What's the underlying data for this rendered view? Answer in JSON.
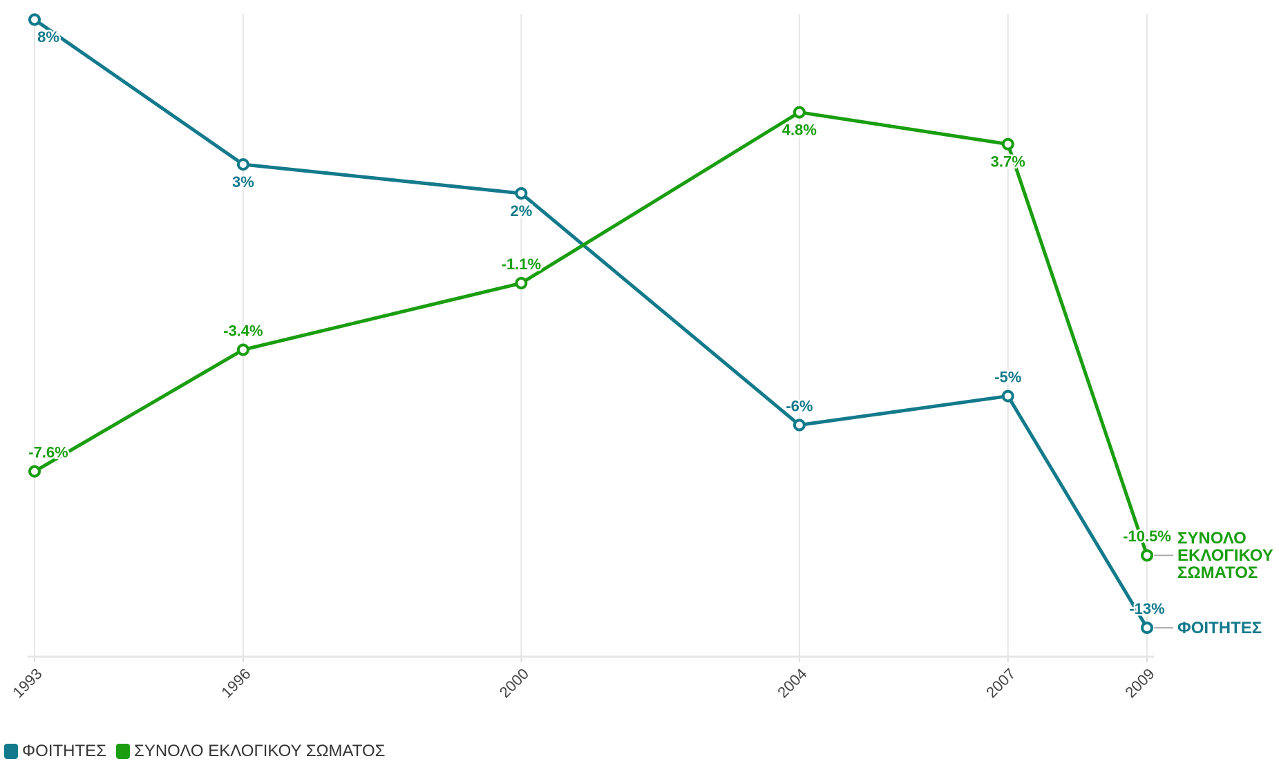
{
  "chart_data": {
    "type": "line",
    "x": [
      1993,
      1996,
      2000,
      2004,
      2007,
      2009
    ],
    "xlim": [
      1993,
      2009
    ],
    "xticks": [
      1993,
      1996,
      2000,
      2004,
      2007,
      2009
    ],
    "ylim": [
      -14,
      8.2
    ],
    "grid": true,
    "series": [
      {
        "name": "ΦΟΙΤΗΤΕΣ",
        "color": "#137a8c",
        "values": [
          8,
          3,
          2,
          -6,
          -5,
          -13
        ],
        "value_labels": [
          "8%",
          "3%",
          "2%",
          "-6%",
          "-5%",
          "-13%"
        ]
      },
      {
        "name": "ΣΥΝΟΛΟ ΕΚΛΟΓΙΚΟΥ ΣΩΜΑΤΟΣ",
        "color": "#1a9e10",
        "values": [
          -7.6,
          -3.4,
          -1.1,
          4.8,
          3.7,
          -10.5
        ],
        "value_labels": [
          "-7.6%",
          "-3.4%",
          "-1.1%",
          "4.8%",
          "3.7%",
          "-10.5%"
        ]
      }
    ]
  }
}
